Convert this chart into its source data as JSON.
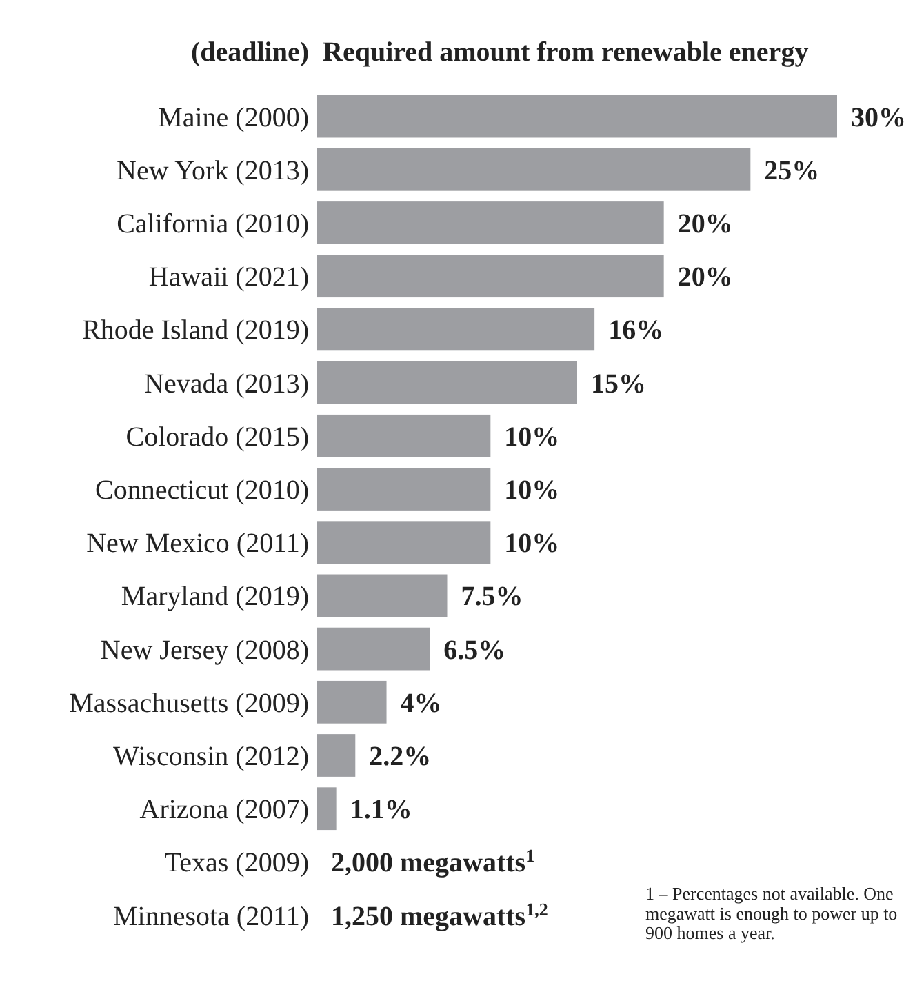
{
  "chart_data": {
    "type": "bar",
    "orientation": "horizontal",
    "title": "Required amount from renewable energy",
    "ylabel": "(deadline)",
    "categories": [
      "Maine (2000)",
      "New York (2013)",
      "California (2010)",
      "Hawaii (2021)",
      "Rhode Island (2019)",
      "Nevada (2013)",
      "Colorado (2015)",
      "Connecticut (2010)",
      "New Mexico (2011)",
      "Maryland (2019)",
      "New Jersey (2008)",
      "Massachusetts (2009)",
      "Wisconsin (2012)",
      "Arizona (2007)",
      "Texas (2009)",
      "Minnesota (2011)"
    ],
    "values": [
      30,
      25,
      20,
      20,
      16,
      15,
      10,
      10,
      10,
      7.5,
      6.5,
      4,
      2.2,
      1.1,
      null,
      null
    ],
    "value_labels": [
      "30%",
      "25%",
      "20%",
      "20%",
      "16%",
      "15%",
      "10%",
      "10%",
      "10%",
      "7.5%",
      "6.5%",
      "4%",
      "2.2%",
      "1.1%",
      "2,000 megawatts$^{1}$",
      "1,250 megawatts$^{1,2}$"
    ],
    "color": "#9d9ea2",
    "annotations": [
      "1 – Percentages not available. One megawatt is enough to power up to 900 homes a year."
    ]
  }
}
